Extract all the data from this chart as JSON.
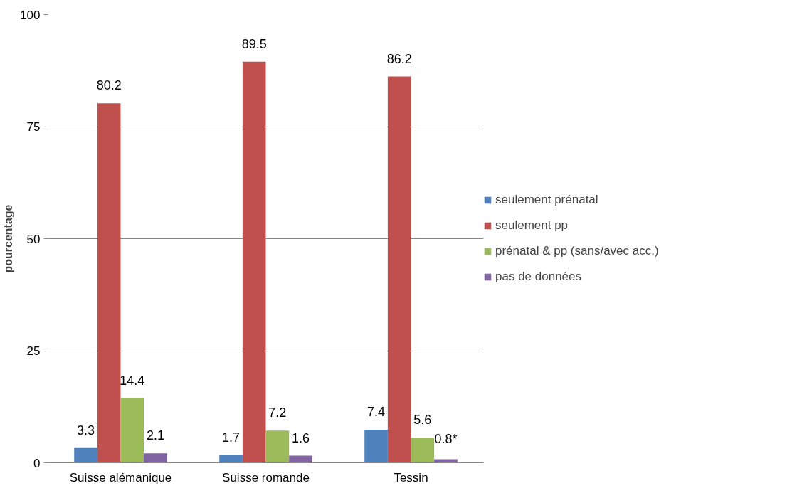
{
  "chart_data": {
    "type": "bar",
    "ylabel": "pourcentage",
    "categories": [
      "Suisse alémanique",
      "Suisse romande",
      "Tessin"
    ],
    "series": [
      {
        "name": "seulement prénatal",
        "color": "#4f81bd",
        "values": [
          3.3,
          1.7,
          7.4
        ],
        "value_labels": [
          "3.3",
          "1.7",
          "7.4"
        ]
      },
      {
        "name": "seulement pp",
        "color": "#c0504d",
        "values": [
          80.2,
          89.5,
          86.2
        ],
        "value_labels": [
          "80.2",
          "89.5",
          "86.2"
        ]
      },
      {
        "name": "prénatal & pp (sans/avec acc.)",
        "color": "#9bbb59",
        "values": [
          14.4,
          7.2,
          5.6
        ],
        "value_labels": [
          "14.4",
          "7.2",
          "5.6"
        ]
      },
      {
        "name": "pas de données",
        "color": "#8064a2",
        "values": [
          2.1,
          1.6,
          0.8
        ],
        "value_labels": [
          "2.1",
          "1.6",
          "0.8*"
        ]
      }
    ],
    "ylim": [
      0,
      100
    ],
    "yticks": [
      0,
      25,
      50,
      75,
      100
    ],
    "grid": "y",
    "legend": "right"
  }
}
